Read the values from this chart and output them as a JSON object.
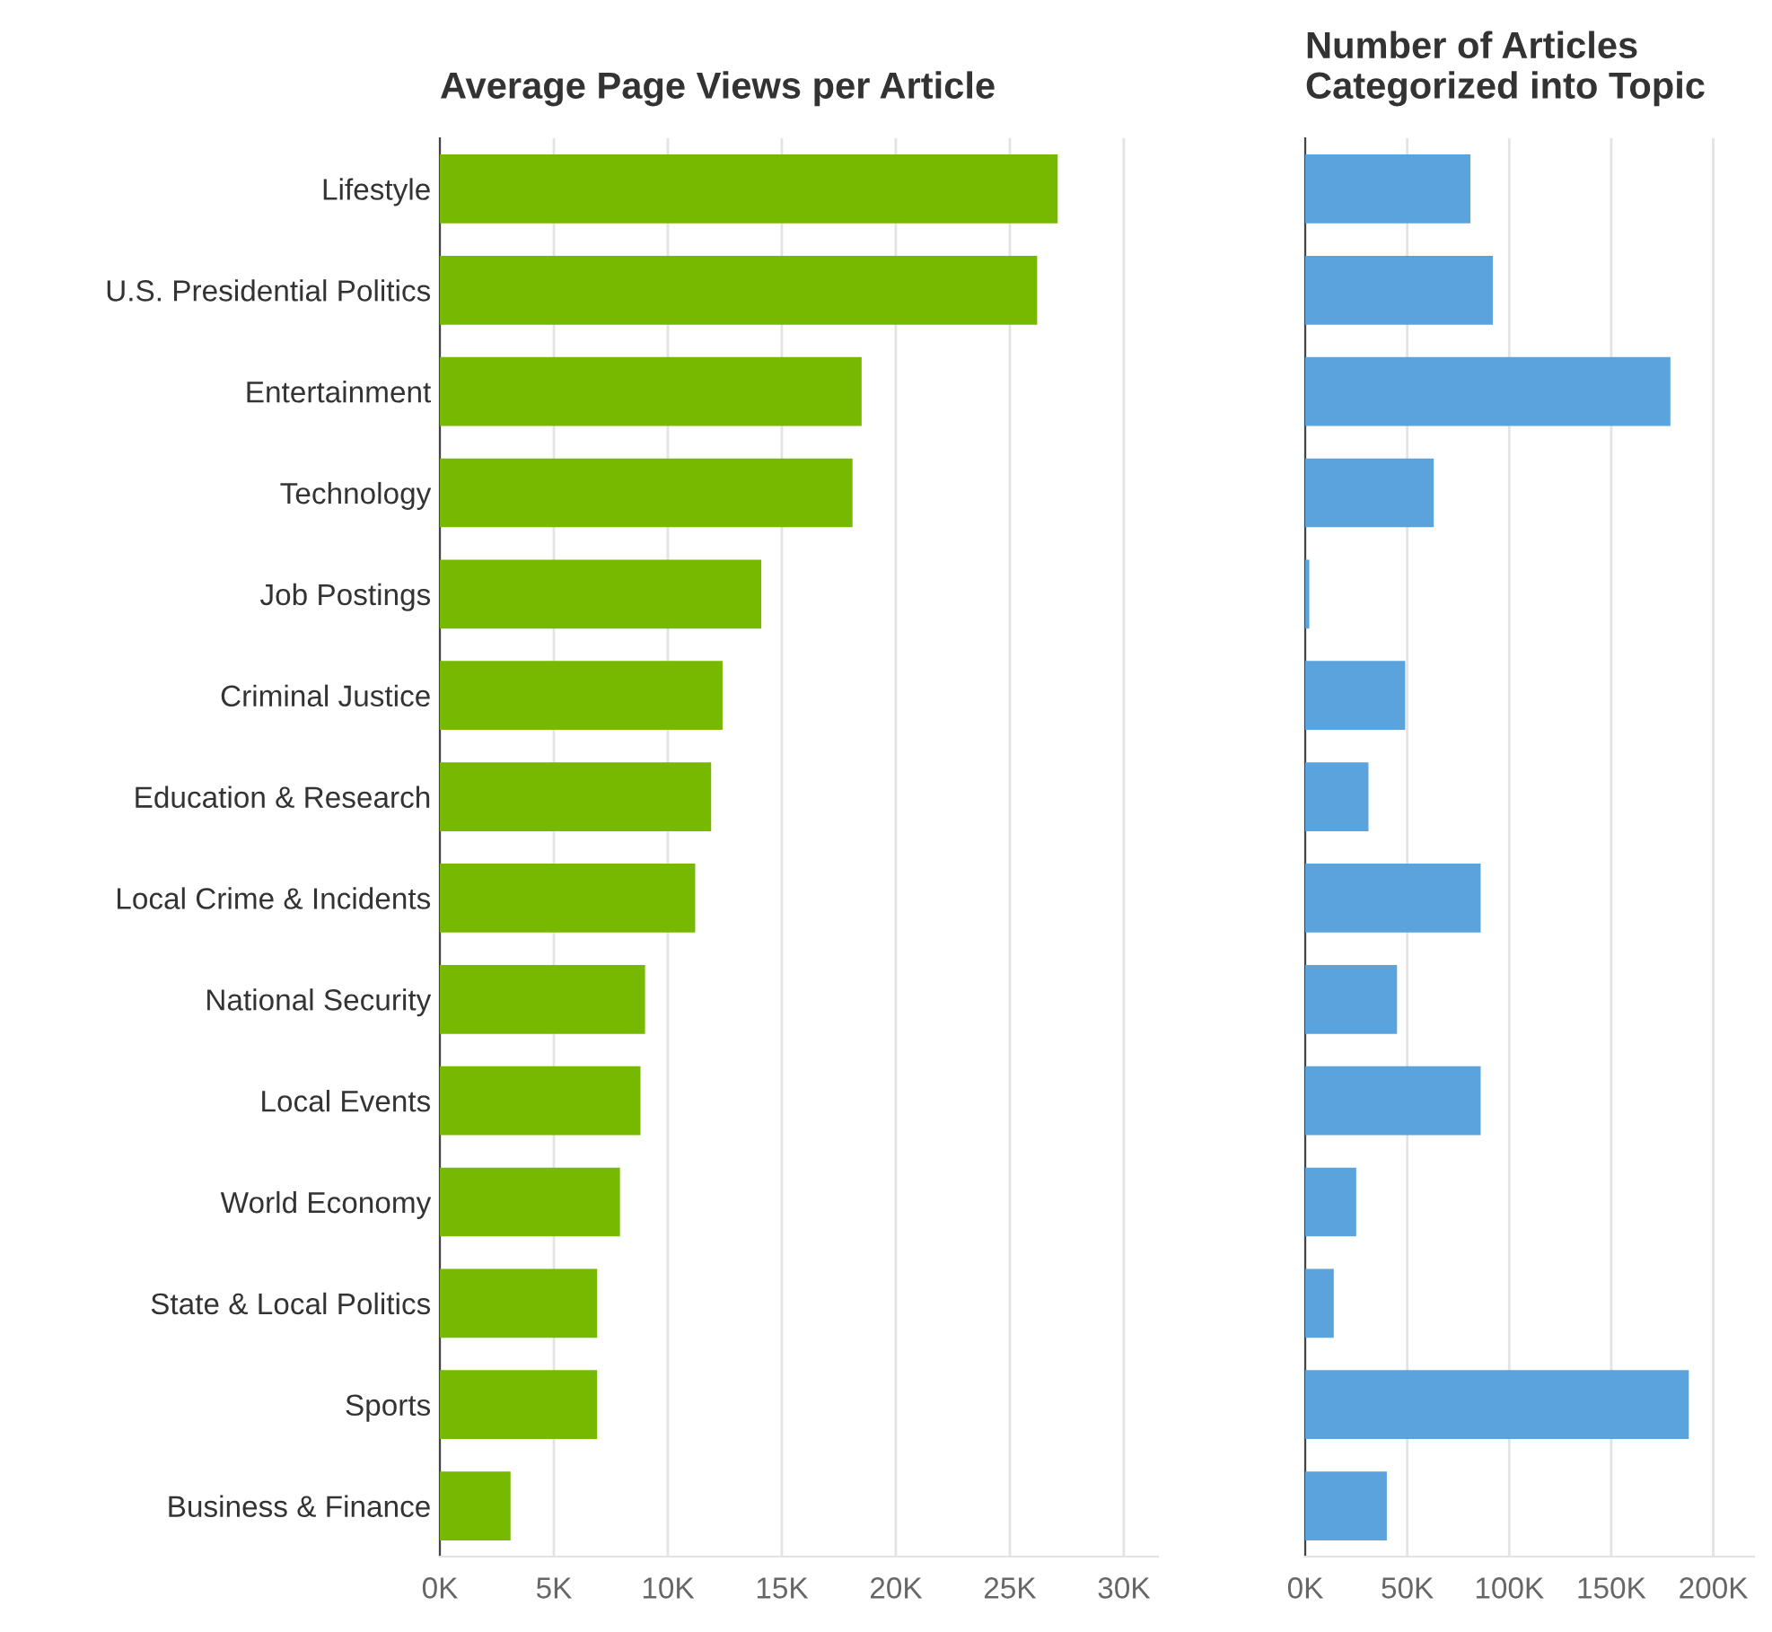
{
  "chart_data": [
    {
      "type": "bar",
      "orientation": "horizontal",
      "title": "Average Page Views per Article",
      "categories": [
        "Lifestyle",
        "U.S. Presidential Politics",
        "Entertainment",
        "Technology",
        "Job Postings",
        "Criminal Justice",
        "Education & Research",
        "Local Crime & Incidents",
        "National Security",
        "Local Events",
        "World Economy",
        "State & Local Politics",
        "Sports",
        "Business & Finance"
      ],
      "series": [
        {
          "color": "#76b900",
          "values": [
            27100,
            26200,
            18500,
            18100,
            14100,
            12400,
            11900,
            11200,
            9000,
            8800,
            7900,
            6900,
            6900,
            3100
          ]
        }
      ],
      "xlim": [
        0,
        31500
      ],
      "xticks": [
        {
          "value": 0,
          "label": "0K"
        },
        {
          "value": 5000,
          "label": "5K"
        },
        {
          "value": 10000,
          "label": "10K"
        },
        {
          "value": 15000,
          "label": "15K"
        },
        {
          "value": 20000,
          "label": "20K"
        },
        {
          "value": 25000,
          "label": "25K"
        },
        {
          "value": 30000,
          "label": "30K"
        }
      ],
      "grid": "x"
    },
    {
      "type": "bar",
      "orientation": "horizontal",
      "title": "Number of Articles\nCategorized into Topic",
      "categories": [
        null,
        null,
        null,
        null,
        null,
        null,
        null,
        null,
        null,
        null,
        null,
        null,
        null,
        null
      ],
      "series": [
        {
          "color": "#5ba3dc",
          "values": [
            81000,
            92000,
            179000,
            63000,
            2000,
            49000,
            31000,
            86000,
            45000,
            86000,
            25000,
            14000,
            188000,
            40000
          ]
        }
      ],
      "xlim": [
        0,
        220000
      ],
      "xticks": [
        {
          "value": 0,
          "label": "0K"
        },
        {
          "value": 50000,
          "label": "50K"
        },
        {
          "value": 100000,
          "label": "100K"
        },
        {
          "value": 150000,
          "label": "150K"
        },
        {
          "value": 200000,
          "label": "200K"
        }
      ],
      "grid": "x",
      "tick_labels": "x"
    }
  ]
}
